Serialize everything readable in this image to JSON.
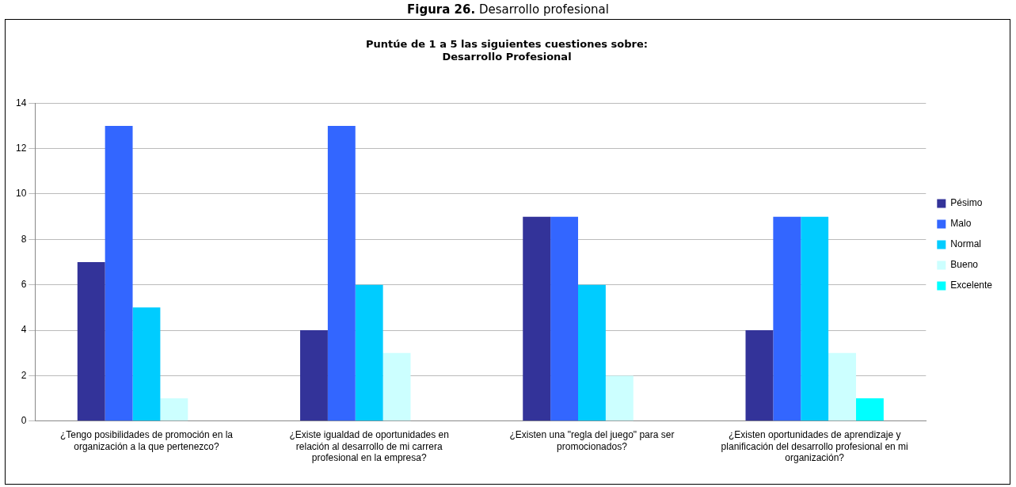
{
  "chart_data": {
    "type": "bar",
    "title": "Figura 26. Desarrollo profesional",
    "subtitle": "Puntúe de 1 a 5 las siguientes cuestiones sobre:\nDesarrollo Profesional",
    "categories": [
      "¿Tengo posibilidades de promoción en la organización a la que pertenezco?",
      "¿Existe igualdad de oportunidades en relación al desarrollo de mi carrera profesional en la empresa?",
      "¿Existen una \"regla del juego\" para ser promocionados?",
      "¿Existen oportunidades de aprendizaje y planificación del desarrollo profesional en mi organización?"
    ],
    "series": [
      {
        "name": "Pésimo",
        "color": "#333399",
        "values": [
          7,
          4,
          9,
          4
        ]
      },
      {
        "name": "Malo",
        "color": "#3366ff",
        "values": [
          13,
          13,
          9,
          9
        ]
      },
      {
        "name": "Normal",
        "color": "#00ccff",
        "values": [
          5,
          6,
          6,
          9
        ]
      },
      {
        "name": "Bueno",
        "color": "#ccffff",
        "values": [
          1,
          3,
          2,
          3
        ]
      },
      {
        "name": "Excelente",
        "color": "#00ffff",
        "values": [
          0,
          0,
          0,
          1
        ]
      }
    ],
    "ylim": [
      0,
      14
    ],
    "yticks": [
      0,
      2,
      4,
      6,
      8,
      10,
      12,
      14
    ],
    "grid": "y",
    "legend": "right"
  }
}
